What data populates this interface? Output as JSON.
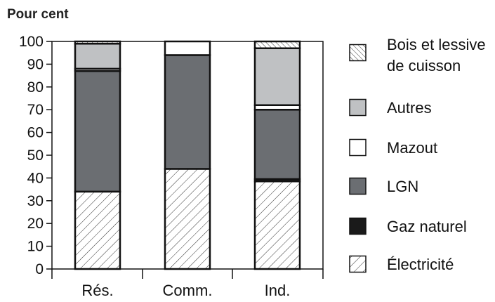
{
  "chart_data": {
    "type": "bar",
    "stacked": true,
    "title": "",
    "ylabel": "Pour cent",
    "xlabel": "",
    "ylim": [
      0,
      100
    ],
    "yticks": [
      0,
      10,
      20,
      30,
      40,
      50,
      60,
      70,
      80,
      90,
      100
    ],
    "categories": [
      "Rés.",
      "Comm.",
      "Ind."
    ],
    "series": [
      {
        "name": "Électricité",
        "values": [
          34,
          44,
          38.5
        ],
        "color": "#ffffff",
        "pattern": "hatch-fwd-sparse"
      },
      {
        "name": "Gaz naturel",
        "values": [
          0,
          0,
          1
        ],
        "color": "#1a1a1a",
        "pattern": "solid"
      },
      {
        "name": "LGN",
        "values": [
          53,
          50,
          30.5
        ],
        "color": "#6b6e72",
        "pattern": "solid"
      },
      {
        "name": "Mazout",
        "values": [
          1,
          6,
          2
        ],
        "color": "#ffffff",
        "pattern": "solid"
      },
      {
        "name": "Autres",
        "values": [
          11,
          0,
          25
        ],
        "color": "#bfc1c3",
        "pattern": "solid"
      },
      {
        "name": "Bois et lessive de cuisson",
        "values": [
          1,
          0,
          3
        ],
        "color": "#ffffff",
        "pattern": "hatch-back-dense"
      }
    ],
    "legend": {
      "placement": "right",
      "order": [
        5,
        4,
        3,
        2,
        1,
        0
      ],
      "labels": [
        [
          "Bois et lessive",
          "de cuisson"
        ],
        [
          "Autres"
        ],
        [
          "Mazout"
        ],
        [
          "LGN"
        ],
        [
          "Gaz naturel"
        ],
        [
          "Électricité"
        ]
      ]
    },
    "grid": false
  }
}
